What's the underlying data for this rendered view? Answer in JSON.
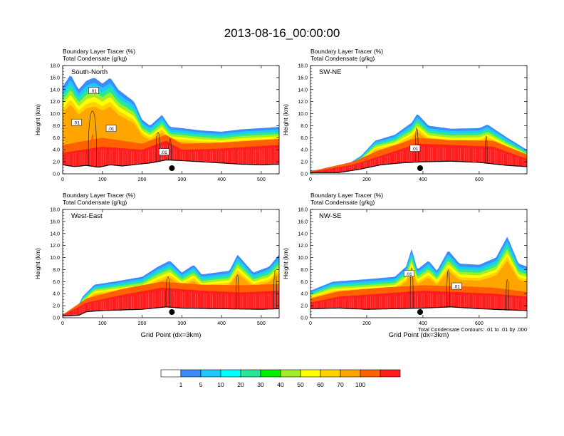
{
  "title": "2013-08-16_00:00:00",
  "chart_data": {
    "type": "heatmap",
    "description_label": "Boundary Layer Tracer (%) shaded; Total Condensate (g/kg) contours",
    "colorbar": {
      "colors": [
        "#ffffff",
        "#3b8cff",
        "#1ec8ff",
        "#00ffff",
        "#27e896",
        "#00ee00",
        "#a0ee28",
        "#ffff00",
        "#ffd200",
        "#ffa500",
        "#ff6000",
        "#ff1e1e"
      ],
      "labels": [
        "1",
        "5",
        "10",
        "20",
        "30",
        "40",
        "50",
        "60",
        "70",
        "100"
      ]
    },
    "panels": [
      {
        "name": "South-North",
        "line1": "Boundary Layer Tracer   (%)",
        "line2": "Total Condensate   (g/kg)",
        "ylabel": "Height (km)",
        "xlabel": "",
        "ylim": [
          0,
          18
        ],
        "yticks": [
          "0.0",
          "2.0",
          "4.0",
          "6.0",
          "8.0",
          "10.0",
          "12.0",
          "14.0",
          "16.0",
          "18.0"
        ],
        "xlim": [
          0,
          545
        ],
        "xticks": [
          0,
          100,
          200,
          300,
          400,
          500
        ],
        "marker_x": 275,
        "contour_labels": [
          {
            "x": 35,
            "y": 8.5,
            "text": ".01"
          },
          {
            "x": 78,
            "y": 13.8,
            "text": ".01"
          },
          {
            "x": 122,
            "y": 7.5,
            "text": ".01"
          },
          {
            "x": 255,
            "y": 3.6,
            "text": ".01"
          }
        ],
        "terrain": [
          [
            0,
            1.5
          ],
          [
            30,
            1.2
          ],
          [
            60,
            1.4
          ],
          [
            90,
            1.1
          ],
          [
            120,
            1.5
          ],
          [
            150,
            1.3
          ],
          [
            190,
            1.6
          ],
          [
            220,
            1.8
          ],
          [
            260,
            2.3
          ],
          [
            300,
            2.2
          ],
          [
            350,
            2.0
          ],
          [
            400,
            1.8
          ],
          [
            450,
            1.6
          ],
          [
            500,
            1.5
          ],
          [
            545,
            1.6
          ]
        ],
        "top": [
          [
            0,
            14.5
          ],
          [
            20,
            16.5
          ],
          [
            40,
            14
          ],
          [
            60,
            15.5
          ],
          [
            80,
            16
          ],
          [
            100,
            15
          ],
          [
            120,
            16
          ],
          [
            140,
            14
          ],
          [
            160,
            13
          ],
          [
            180,
            12
          ],
          [
            200,
            9
          ],
          [
            220,
            8
          ],
          [
            250,
            9.8
          ],
          [
            270,
            7.8
          ],
          [
            300,
            7.6
          ],
          [
            350,
            7.2
          ],
          [
            400,
            7.0
          ],
          [
            450,
            7.4
          ],
          [
            500,
            7.6
          ],
          [
            545,
            7.8
          ]
        ],
        "bands": [
          {
            "color": "#ff1e1e",
            "top": [
              [
                0,
                3.5
              ],
              [
                100,
                4.5
              ],
              [
                200,
                4.0
              ],
              [
                260,
                5.5
              ],
              [
                300,
                4.0
              ],
              [
                400,
                4.2
              ],
              [
                545,
                4.8
              ]
            ]
          },
          {
            "color": "#ff6000",
            "top": [
              [
                0,
                4.8
              ],
              [
                100,
                6.0
              ],
              [
                200,
                5.0
              ],
              [
                260,
                6.5
              ],
              [
                300,
                5.0
              ],
              [
                400,
                5.2
              ],
              [
                545,
                5.8
              ]
            ]
          }
        ],
        "plumes": [
          {
            "x": 75,
            "w": 28,
            "h": 13.5
          },
          {
            "x": 240,
            "w": 14,
            "h": 8.5
          },
          {
            "x": 270,
            "w": 10,
            "h": 7.0
          }
        ]
      },
      {
        "name": "SW-NE",
        "line1": "Boundary Layer Tracer   (%)",
        "line2": "Total Condensate   (g/kg)",
        "ylabel": "Height (km)",
        "xlabel": "",
        "ylim": [
          0,
          18
        ],
        "yticks": [
          "0.0",
          "2.0",
          "4.0",
          "6.0",
          "8.0",
          "10.0",
          "12.0",
          "14.0",
          "16.0",
          "18.0"
        ],
        "xlim": [
          0,
          770
        ],
        "xticks": [
          0,
          200,
          400,
          600
        ],
        "marker_x": 390,
        "contour_labels": [
          {
            "x": 372,
            "y": 4.2,
            "text": ".01"
          }
        ],
        "terrain": [
          [
            0,
            0.2
          ],
          [
            100,
            0.2
          ],
          [
            180,
            0.8
          ],
          [
            250,
            1.5
          ],
          [
            320,
            1.8
          ],
          [
            400,
            2.0
          ],
          [
            500,
            2.1
          ],
          [
            600,
            1.9
          ],
          [
            700,
            1.4
          ],
          [
            770,
            1.2
          ]
        ],
        "top": [
          [
            0,
            0.6
          ],
          [
            100,
            0.6
          ],
          [
            180,
            3
          ],
          [
            230,
            5.5
          ],
          [
            300,
            6.5
          ],
          [
            360,
            8.5
          ],
          [
            380,
            10
          ],
          [
            420,
            8
          ],
          [
            500,
            7.5
          ],
          [
            600,
            7.6
          ],
          [
            630,
            8.2
          ],
          [
            700,
            6
          ],
          [
            770,
            4
          ]
        ],
        "bands": [
          {
            "color": "#ff1e1e",
            "top": [
              [
                0,
                0.3
              ],
              [
                150,
                1.5
              ],
              [
                250,
                3.0
              ],
              [
                380,
                5.0
              ],
              [
                500,
                4.8
              ],
              [
                650,
                4.5
              ],
              [
                770,
                2.5
              ]
            ]
          },
          {
            "color": "#ff6000",
            "top": [
              [
                0,
                0.4
              ],
              [
                150,
                2.0
              ],
              [
                250,
                4.0
              ],
              [
                380,
                6.0
              ],
              [
                500,
                5.6
              ],
              [
                650,
                5.5
              ],
              [
                770,
                3.2
              ]
            ]
          }
        ],
        "plumes": [
          {
            "x": 378,
            "w": 14,
            "h": 9.5
          },
          {
            "x": 625,
            "w": 10,
            "h": 7.8
          }
        ]
      },
      {
        "name": "West-East",
        "line1": "Boundary Layer Tracer   (%)",
        "line2": "Total Condensate   (g/kg)",
        "ylabel": "Height (km)",
        "xlabel": "Grid Point (dx=3km)",
        "ylim": [
          0,
          18
        ],
        "yticks": [
          "0.0",
          "2.0",
          "4.0",
          "6.0",
          "8.0",
          "10.0",
          "12.0",
          "14.0",
          "16.0",
          "18.0"
        ],
        "xlim": [
          0,
          545
        ],
        "xticks": [
          0,
          100,
          200,
          300,
          400,
          500
        ],
        "marker_x": 275,
        "contour_labels": [],
        "terrain": [
          [
            0,
            0.3
          ],
          [
            40,
            0.4
          ],
          [
            60,
            1.0
          ],
          [
            100,
            1.2
          ],
          [
            200,
            1.4
          ],
          [
            260,
            1.8
          ],
          [
            300,
            1.6
          ],
          [
            400,
            1.5
          ],
          [
            500,
            1.4
          ],
          [
            545,
            1.5
          ]
        ],
        "top": [
          [
            0,
            0.7
          ],
          [
            30,
            0.8
          ],
          [
            50,
            3.5
          ],
          [
            80,
            5.5
          ],
          [
            130,
            6.0
          ],
          [
            200,
            6.8
          ],
          [
            240,
            8.5
          ],
          [
            270,
            9.5
          ],
          [
            300,
            7.5
          ],
          [
            330,
            8.8
          ],
          [
            350,
            7.2
          ],
          [
            420,
            7.8
          ],
          [
            440,
            10.5
          ],
          [
            480,
            7.5
          ],
          [
            520,
            8.5
          ],
          [
            545,
            10.5
          ]
        ],
        "bands": [
          {
            "color": "#ff1e1e",
            "top": [
              [
                0,
                0.4
              ],
              [
                60,
                2.5
              ],
              [
                150,
                3.8
              ],
              [
                250,
                5.0
              ],
              [
                350,
                4.5
              ],
              [
                450,
                4.2
              ],
              [
                545,
                4.5
              ]
            ]
          },
          {
            "color": "#ff6000",
            "top": [
              [
                0,
                0.5
              ],
              [
                60,
                3.2
              ],
              [
                150,
                4.8
              ],
              [
                250,
                6.0
              ],
              [
                350,
                5.5
              ],
              [
                450,
                5.4
              ],
              [
                545,
                5.6
              ]
            ]
          }
        ],
        "plumes": [
          {
            "x": 265,
            "w": 14,
            "h": 8.5
          },
          {
            "x": 440,
            "w": 10,
            "h": 9.0
          },
          {
            "x": 535,
            "w": 10,
            "h": 10.0
          }
        ]
      },
      {
        "name": "NW-SE",
        "line1": "Boundary Layer Tracer   (%)",
        "line2": "Total Condensate   (g/kg)",
        "ylabel": "Height (km)",
        "xlabel": "Grid Point (dx=3km)",
        "ylim": [
          0,
          18
        ],
        "yticks": [
          "0.0",
          "2.0",
          "4.0",
          "6.0",
          "8.0",
          "10.0",
          "12.0",
          "14.0",
          "16.0",
          "18.0"
        ],
        "xlim": [
          0,
          770
        ],
        "xticks": [
          0,
          200,
          400,
          600
        ],
        "marker_x": 390,
        "contour_labels": [
          {
            "x": 350,
            "y": 7.3,
            "text": ".01"
          },
          {
            "x": 520,
            "y": 5.2,
            "text": ".01"
          }
        ],
        "terrain": [
          [
            0,
            1.5
          ],
          [
            100,
            1.6
          ],
          [
            200,
            1.4
          ],
          [
            300,
            1.5
          ],
          [
            400,
            1.6
          ],
          [
            500,
            1.8
          ],
          [
            600,
            1.5
          ],
          [
            700,
            1.3
          ],
          [
            770,
            1.2
          ]
        ],
        "top": [
          [
            0,
            4.5
          ],
          [
            80,
            6.0
          ],
          [
            200,
            6.4
          ],
          [
            300,
            6.8
          ],
          [
            340,
            8.5
          ],
          [
            360,
            11.5
          ],
          [
            380,
            8
          ],
          [
            420,
            9.5
          ],
          [
            450,
            7.8
          ],
          [
            490,
            11.2
          ],
          [
            530,
            9
          ],
          [
            600,
            8.8
          ],
          [
            660,
            10
          ],
          [
            700,
            13.5
          ],
          [
            740,
            9
          ],
          [
            770,
            8.5
          ]
        ],
        "bands": [
          {
            "color": "#ff1e1e",
            "top": [
              [
                0,
                2.5
              ],
              [
                100,
                3.5
              ],
              [
                250,
                4.0
              ],
              [
                400,
                4.5
              ],
              [
                550,
                4.2
              ],
              [
                650,
                4.0
              ],
              [
                770,
                3.5
              ]
            ]
          },
          {
            "color": "#ff6000",
            "top": [
              [
                0,
                3.2
              ],
              [
                100,
                4.4
              ],
              [
                250,
                5.0
              ],
              [
                400,
                5.4
              ],
              [
                550,
                5.2
              ],
              [
                650,
                5.0
              ],
              [
                770,
                4.3
              ]
            ]
          }
        ],
        "plumes": [
          {
            "x": 360,
            "w": 14,
            "h": 10.5
          },
          {
            "x": 490,
            "w": 14,
            "h": 10.0
          },
          {
            "x": 700,
            "w": 12,
            "h": 8.0
          }
        ]
      }
    ],
    "footnote": "Total Condensate Contours: .01 to .01 by .000"
  }
}
